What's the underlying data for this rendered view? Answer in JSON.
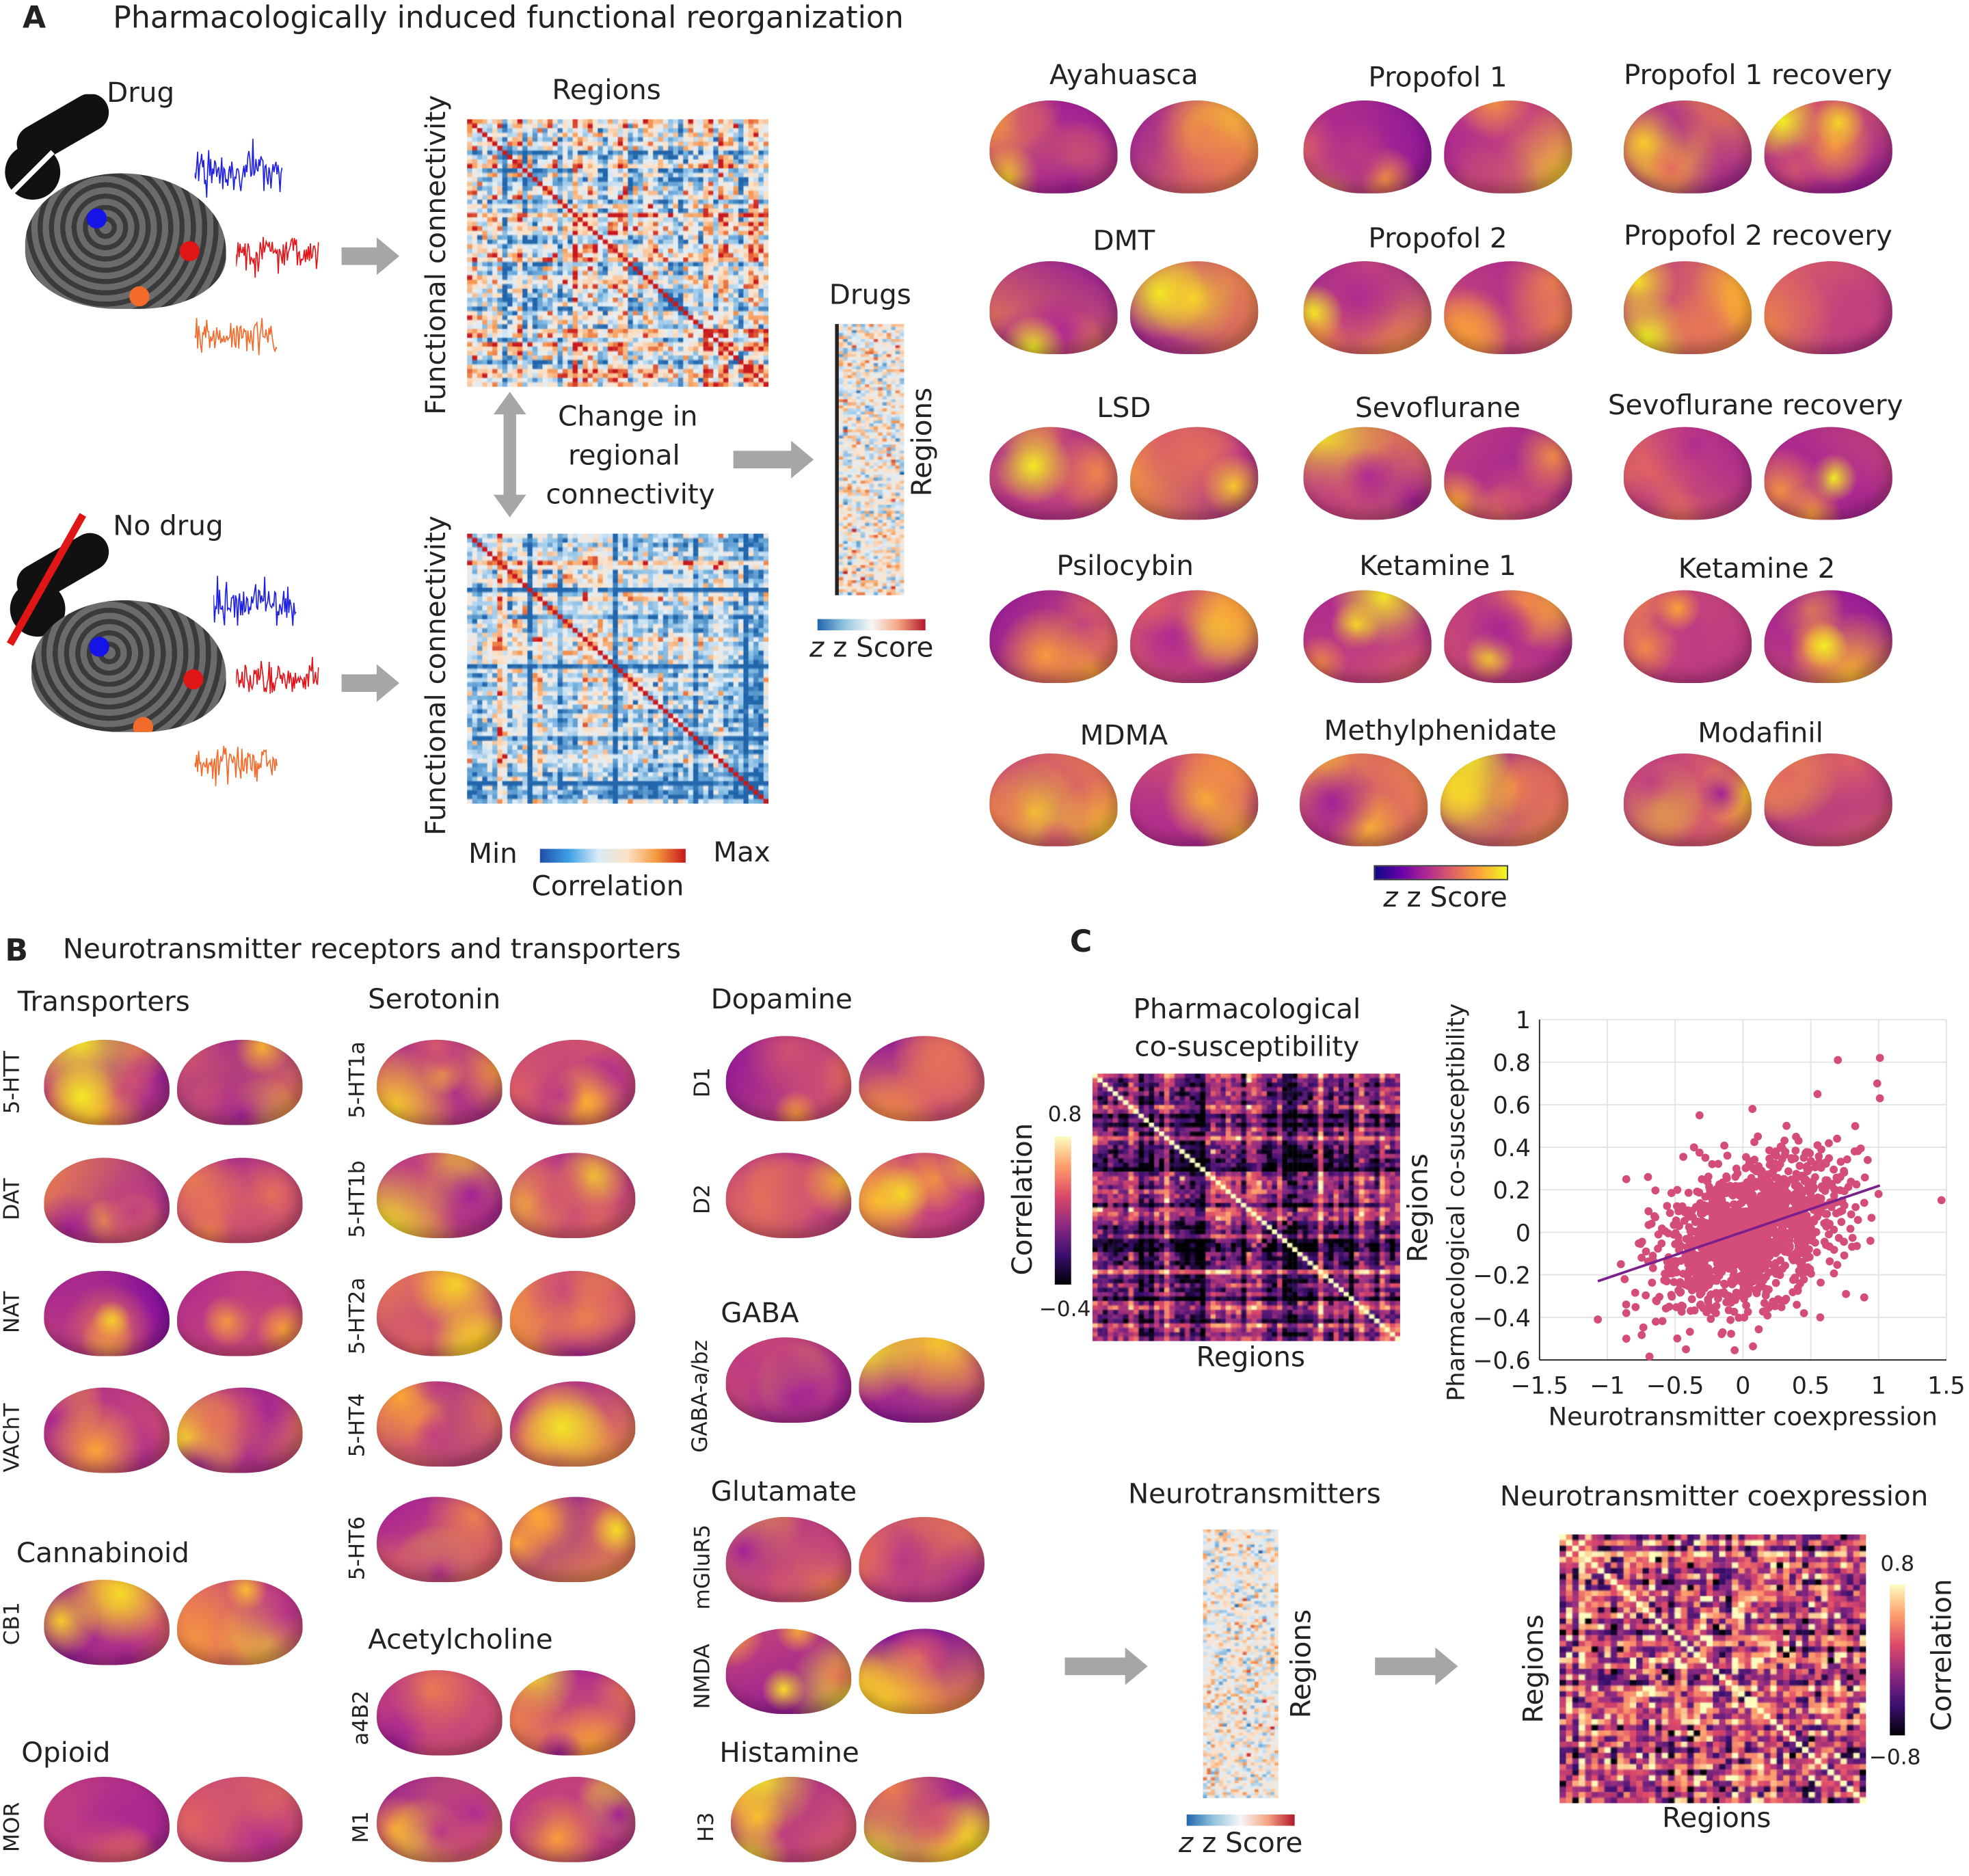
{
  "panel_a": {
    "label": "A",
    "title": "Pharmacologically induced functional reorganization",
    "drug_label": "Drug",
    "no_drug_label": "No drug",
    "regions_label": "Regions",
    "fc_label": "Functional connectivity",
    "change_lines": [
      "Change in",
      "regional",
      "connectivity"
    ],
    "drugs_label": "Drugs",
    "strip_regions_label": "Regions",
    "zscore_label": "z Score",
    "corr_min": "Min",
    "corr_max": "Max",
    "corr_label": "Correlation",
    "brain_zscore_label": "z Score",
    "conditions": [
      "Ayahuasca",
      "Propofol 1",
      "Propofol 1 recovery",
      "DMT",
      "Propofol 2",
      "Propofol 2 recovery",
      "LSD",
      "Sevoflurane",
      "Sevoflurane recovery",
      "Psilocybin",
      "Ketamine 1",
      "Ketamine 2",
      "MDMA",
      "Methylphenidate",
      "Modafinil"
    ]
  },
  "panel_b": {
    "label": "B",
    "title": "Neurotransmitter receptors and transporters",
    "groups": {
      "transporters": "Transporters",
      "serotonin": "Serotonin",
      "dopamine": "Dopamine",
      "cannabinoid": "Cannabinoid",
      "opioid": "Opioid",
      "acetylcholine": "Acetylcholine",
      "gaba": "GABA",
      "glutamate": "Glutamate",
      "histamine": "Histamine"
    },
    "maps": {
      "transporters": [
        "5-HTT",
        "DAT",
        "NAT",
        "VAChT"
      ],
      "cannabinoid": [
        "CB1"
      ],
      "opioid": [
        "MOR"
      ],
      "serotonin": [
        "5-HT1a",
        "5-HT1b",
        "5-HT2a",
        "5-HT4",
        "5-HT6"
      ],
      "acetylcholine": [
        "a4B2",
        "M1"
      ],
      "dopamine": [
        "D1",
        "D2"
      ],
      "gaba": [
        "GABA-a/bz"
      ],
      "glutamate": [
        "mGluR5",
        "NMDA"
      ],
      "histamine": [
        "H3"
      ]
    }
  },
  "panel_c": {
    "label": "C",
    "cosus_title": [
      "Pharmacological",
      "co-susceptibility"
    ],
    "cosus_cbar_max": "0.8",
    "cosus_cbar_min": "−0.4",
    "cosus_cbar_label": "Correlation",
    "cosus_regions_right": "Regions",
    "cosus_regions_bottom": "Regions",
    "nt_title": "Neurotransmitters",
    "nt_regions": "Regions",
    "nt_zscore": "z Score",
    "coexp_title": "Neurotransmitter coexpression",
    "coexp_regions_left": "Regions",
    "coexp_regions_bottom": "Regions",
    "coexp_cbar_max": "0.8",
    "coexp_cbar_min": "−0.8",
    "coexp_cbar_label": "Correlation"
  },
  "colors": {
    "scatter_point": "#d44c78",
    "fit_line": "#7b1f8c",
    "arrow": "#a6a6a6",
    "signal_blue": "#1f1fe0",
    "signal_red": "#e0161a",
    "signal_orange": "#f26b2a"
  },
  "chart_data": {
    "type": "scatter",
    "title": "",
    "xlabel": "Neurotransmitter coexpression",
    "ylabel": "Pharmacological co-susceptibility",
    "xlim": [
      -1.5,
      1.5
    ],
    "ylim": [
      -0.6,
      1
    ],
    "xticks": [
      "−1.5",
      "−1",
      "−0.5",
      "0",
      "0.5",
      "1",
      "1.5"
    ],
    "xtick_values": [
      -1.5,
      -1,
      -0.5,
      0,
      0.5,
      1,
      1.5
    ],
    "yticks": [
      "1",
      "0.8",
      "0.6",
      "0.4",
      "0.2",
      "0",
      "−0.2",
      "−0.4",
      "−0.6"
    ],
    "ytick_values": [
      1,
      0.8,
      0.6,
      0.4,
      0.2,
      0,
      -0.2,
      -0.4,
      -0.6
    ],
    "grid": true,
    "fit_line": {
      "x": [
        -1.07,
        1.01
      ],
      "y": [
        -0.23,
        0.22
      ]
    },
    "cloud": {
      "x_mean": 0.05,
      "x_sd": 0.33,
      "y_mean": 0.0,
      "y_sd": 0.16,
      "slope": 0.21,
      "n": 1400
    },
    "outliers": [
      [
        -1.07,
        -0.41
      ],
      [
        -0.86,
        -0.5
      ],
      [
        -0.86,
        0.25
      ],
      [
        -0.42,
        -0.55
      ],
      [
        0.7,
        0.81
      ],
      [
        1.01,
        0.82
      ],
      [
        0.99,
        0.7
      ],
      [
        1.01,
        0.63
      ],
      [
        0.55,
        0.65
      ],
      [
        0.94,
        -0.04
      ],
      [
        1.0,
        0.18
      ],
      [
        0.92,
        0.34
      ],
      [
        -0.32,
        0.55
      ],
      [
        -0.7,
        0.26
      ],
      [
        -0.9,
        -0.15
      ],
      [
        0.76,
        -0.29
      ],
      [
        0.57,
        -0.4
      ],
      [
        0.45,
        -0.38
      ],
      [
        -0.15,
        -0.47
      ],
      [
        0.07,
        0.58
      ]
    ]
  }
}
